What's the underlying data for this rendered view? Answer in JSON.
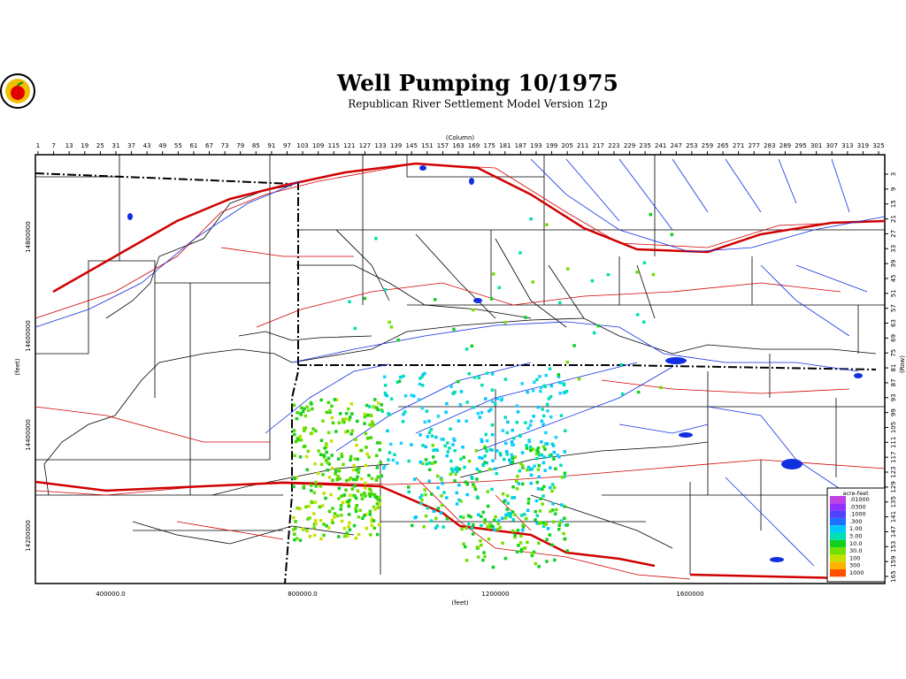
{
  "header": {
    "title": "Well Pumping 10/1975",
    "subtitle": "Republican River Settlement Model Version 12p"
  },
  "axes": {
    "column_label": "(Column)",
    "row_label": "(Row)",
    "x_feet_label": "(feet)",
    "y_feet_label": "(feet)",
    "columns": [
      1,
      7,
      13,
      19,
      25,
      31,
      37,
      43,
      49,
      55,
      61,
      67,
      73,
      79,
      85,
      91,
      97,
      103,
      109,
      115,
      121,
      127,
      133,
      139,
      145,
      151,
      157,
      163,
      169,
      175,
      181,
      187,
      193,
      199,
      205,
      211,
      217,
      223,
      229,
      235,
      241,
      247,
      253,
      259,
      265,
      271,
      277,
      283,
      289,
      295,
      301,
      307,
      313,
      319,
      325
    ],
    "rows": [
      3,
      9,
      15,
      21,
      27,
      33,
      39,
      45,
      51,
      57,
      63,
      69,
      75,
      81,
      87,
      93,
      99,
      105,
      111,
      117,
      123,
      129,
      135,
      141,
      147,
      153,
      159,
      165
    ],
    "x_feet": [
      "400000.0",
      "800000.0",
      "1200000",
      "1600000"
    ],
    "y_feet": [
      "14800000",
      "14600000",
      "14400000",
      "14200000"
    ]
  },
  "legend": {
    "title": "acre-feet",
    "items": [
      {
        "label": ".01000",
        "color": "#c040e0"
      },
      {
        "label": ".0300",
        "color": "#9030ff"
      },
      {
        "label": ".1000",
        "color": "#5040ff"
      },
      {
        "label": ".300",
        "color": "#2070ff"
      },
      {
        "label": "1.00",
        "color": "#00c8ff"
      },
      {
        "label": "3.00",
        "color": "#00e0b0"
      },
      {
        "label": "10.0",
        "color": "#10d020"
      },
      {
        "label": "30.0",
        "color": "#70e000"
      },
      {
        "label": "100",
        "color": "#c8e000"
      },
      {
        "label": "300",
        "color": "#ffb000"
      },
      {
        "label": "1000",
        "color": "#ff5000"
      }
    ]
  }
}
